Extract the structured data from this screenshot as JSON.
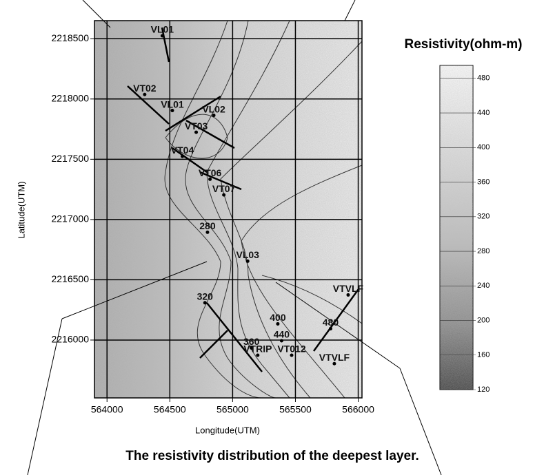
{
  "chart_data": {
    "type": "contour",
    "title": "The resistivity distribution of the deepest layer.",
    "xlabel": "Longitude(UTM)",
    "ylabel": "Latitude(UTM)",
    "colorbar_label": "Resistivity(ohm-m)",
    "xlim": [
      563900,
      566030
    ],
    "ylim": [
      2215520,
      2218650
    ],
    "xticks": [
      564000,
      564500,
      565000,
      565500,
      566000
    ],
    "yticks": [
      2216000,
      2216500,
      2217000,
      2217500,
      2218000,
      2218500
    ],
    "grid": true,
    "clim": [
      120,
      495
    ],
    "cticks": [
      120,
      160,
      200,
      240,
      280,
      320,
      360,
      400,
      440,
      480
    ],
    "annotations": [
      {
        "text": "VL01",
        "x": 564440,
        "y": 2218570
      },
      {
        "text": "VT02",
        "x": 564300,
        "y": 2218083
      },
      {
        "text": "VL01",
        "x": 564520,
        "y": 2217950
      },
      {
        "text": "VL02",
        "x": 564850,
        "y": 2217910
      },
      {
        "text": "VT03",
        "x": 564710,
        "y": 2217770
      },
      {
        "text": "VT04",
        "x": 564600,
        "y": 2217570
      },
      {
        "text": "VT06",
        "x": 564820,
        "y": 2217380
      },
      {
        "text": "VT07",
        "x": 564930,
        "y": 2217250
      },
      {
        "text": "280",
        "x": 564800,
        "y": 2216940
      },
      {
        "text": "VL03",
        "x": 565120,
        "y": 2216700
      },
      {
        "text": "VTVLF",
        "x": 565920,
        "y": 2216420
      },
      {
        "text": "320",
        "x": 564780,
        "y": 2216355
      },
      {
        "text": "360",
        "x": 565150,
        "y": 2215980
      },
      {
        "text": "400",
        "x": 565360,
        "y": 2216180
      },
      {
        "text": "440",
        "x": 565390,
        "y": 2216040
      },
      {
        "text": "480",
        "x": 565780,
        "y": 2216140
      },
      {
        "text": "VTRIP",
        "x": 565200,
        "y": 2215920
      },
      {
        "text": "VT012",
        "x": 565470,
        "y": 2215920
      },
      {
        "text": "VTVLF",
        "x": 565810,
        "y": 2215850
      }
    ]
  }
}
